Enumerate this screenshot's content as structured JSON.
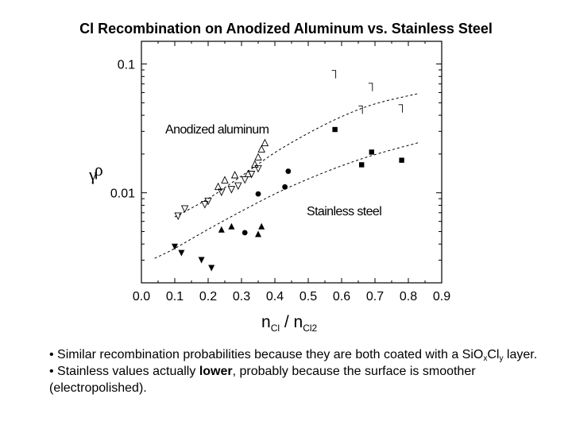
{
  "slide": {
    "title": "Cl Recombination on Anodized Aluminum vs. Stainless Steel",
    "bullets": [
      {
        "prefix": "• Similar recombination probabilities because they are both coated with a ",
        "formula": {
          "base1": "SiO",
          "sub1": "x",
          "base2": "Cl",
          "sub2": "y"
        },
        "suffix": " layer."
      },
      {
        "prefix": "• Stainless values actually ",
        "bold": "lower",
        "suffix": ", probably because the surface is smoother (electropolished)."
      }
    ]
  },
  "chart_data": {
    "type": "scatter",
    "title": "",
    "xlabel": {
      "base": "n",
      "sub": "Cl",
      "mid": " / n",
      "sub2": "Cl2"
    },
    "ylabel": {
      "first": "γ",
      "second": "ρ"
    },
    "xlim": [
      0.0,
      0.9
    ],
    "ylim": [
      0.002,
      0.15
    ],
    "yscale": "log",
    "xticks": [
      "0.0",
      "0.1",
      "0.2",
      "0.3",
      "0.4",
      "0.5",
      "0.6",
      "0.7",
      "0.8",
      "0.9"
    ],
    "yticks": [
      {
        "value": 0.1,
        "label": "0.1"
      },
      {
        "value": 0.01,
        "label": "0.01"
      }
    ],
    "grid": false,
    "annotations": [
      "Anodized aluminum",
      "Stainless steel"
    ],
    "series": [
      {
        "marker": "open-triangle-down",
        "points": [
          [
            0.11,
            0.0066
          ],
          [
            0.13,
            0.0075
          ],
          [
            0.19,
            0.0081
          ],
          [
            0.2,
            0.0086
          ],
          [
            0.24,
            0.0101
          ],
          [
            0.27,
            0.0106
          ],
          [
            0.29,
            0.0113
          ],
          [
            0.31,
            0.0126
          ],
          [
            0.33,
            0.0139
          ],
          [
            0.35,
            0.0154
          ]
        ]
      },
      {
        "marker": "open-triangle-up",
        "points": [
          [
            0.23,
            0.0112
          ],
          [
            0.25,
            0.0126
          ],
          [
            0.28,
            0.0138
          ],
          [
            0.32,
            0.0141
          ],
          [
            0.34,
            0.0167
          ],
          [
            0.35,
            0.019
          ],
          [
            0.36,
            0.0219
          ],
          [
            0.37,
            0.0245
          ]
        ]
      },
      {
        "marker": "open-corner",
        "points": [
          [
            0.58,
            0.083
          ],
          [
            0.66,
            0.044
          ],
          [
            0.69,
            0.066
          ],
          [
            0.78,
            0.045
          ]
        ]
      },
      {
        "marker": "filled-square",
        "points": [
          [
            0.58,
            0.031
          ],
          [
            0.66,
            0.0165
          ],
          [
            0.69,
            0.0207
          ],
          [
            0.78,
            0.0179
          ]
        ]
      },
      {
        "marker": "filled-circle",
        "points": [
          [
            0.31,
            0.0049
          ],
          [
            0.35,
            0.0098
          ],
          [
            0.43,
            0.0111
          ],
          [
            0.44,
            0.0147
          ]
        ]
      },
      {
        "marker": "filled-triangle-up",
        "points": [
          [
            0.24,
            0.0052
          ],
          [
            0.27,
            0.0055
          ],
          [
            0.35,
            0.0048
          ],
          [
            0.36,
            0.0055
          ]
        ]
      },
      {
        "marker": "filled-triangle-down",
        "points": [
          [
            0.1,
            0.0038
          ],
          [
            0.12,
            0.0034
          ],
          [
            0.18,
            0.003
          ],
          [
            0.21,
            0.0026
          ]
        ]
      }
    ],
    "fits": [
      {
        "label": "Anodized aluminum",
        "points": [
          [
            0.1,
            0.0065
          ],
          [
            0.2,
            0.009
          ],
          [
            0.3,
            0.0135
          ],
          [
            0.4,
            0.0205
          ],
          [
            0.5,
            0.029
          ],
          [
            0.6,
            0.039
          ],
          [
            0.7,
            0.049
          ],
          [
            0.83,
            0.059
          ]
        ]
      },
      {
        "label": "Stainless steel",
        "points": [
          [
            0.04,
            0.0031
          ],
          [
            0.1,
            0.0037
          ],
          [
            0.2,
            0.0052
          ],
          [
            0.3,
            0.0072
          ],
          [
            0.4,
            0.0098
          ],
          [
            0.5,
            0.0128
          ],
          [
            0.6,
            0.0162
          ],
          [
            0.7,
            0.0198
          ],
          [
            0.83,
            0.0245
          ]
        ]
      }
    ]
  }
}
